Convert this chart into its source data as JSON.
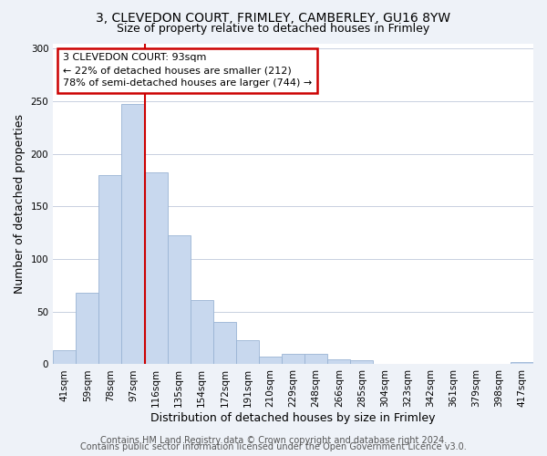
{
  "title_line1": "3, CLEVEDON COURT, FRIMLEY, CAMBERLEY, GU16 8YW",
  "title_line2": "Size of property relative to detached houses in Frimley",
  "xlabel": "Distribution of detached houses by size in Frimley",
  "ylabel": "Number of detached properties",
  "bar_labels": [
    "41sqm",
    "59sqm",
    "78sqm",
    "97sqm",
    "116sqm",
    "135sqm",
    "154sqm",
    "172sqm",
    "191sqm",
    "210sqm",
    "229sqm",
    "248sqm",
    "266sqm",
    "285sqm",
    "304sqm",
    "323sqm",
    "342sqm",
    "361sqm",
    "379sqm",
    "398sqm",
    "417sqm"
  ],
  "bar_values": [
    13,
    68,
    180,
    247,
    182,
    123,
    61,
    40,
    23,
    7,
    10,
    10,
    5,
    4,
    0,
    0,
    0,
    0,
    0,
    0,
    2
  ],
  "bar_color": "#c8d8ee",
  "bar_edgecolor": "#9ab4d4",
  "vline_bar_index": 3,
  "vline_color": "#cc0000",
  "annotation_text": "3 CLEVEDON COURT: 93sqm\n← 22% of detached houses are smaller (212)\n78% of semi-detached houses are larger (744) →",
  "annotation_box_edgecolor": "#cc0000",
  "annotation_box_facecolor": "#ffffff",
  "ylim": [
    0,
    305
  ],
  "yticks": [
    0,
    50,
    100,
    150,
    200,
    250,
    300
  ],
  "footer_line1": "Contains HM Land Registry data © Crown copyright and database right 2024.",
  "footer_line2": "Contains public sector information licensed under the Open Government Licence v3.0.",
  "background_color": "#eef2f8",
  "plot_background_color": "#ffffff",
  "grid_color": "#c8d0e0",
  "title_fontsize": 10,
  "subtitle_fontsize": 9,
  "axis_label_fontsize": 9,
  "tick_fontsize": 7.5,
  "annotation_fontsize": 8,
  "footer_fontsize": 7
}
